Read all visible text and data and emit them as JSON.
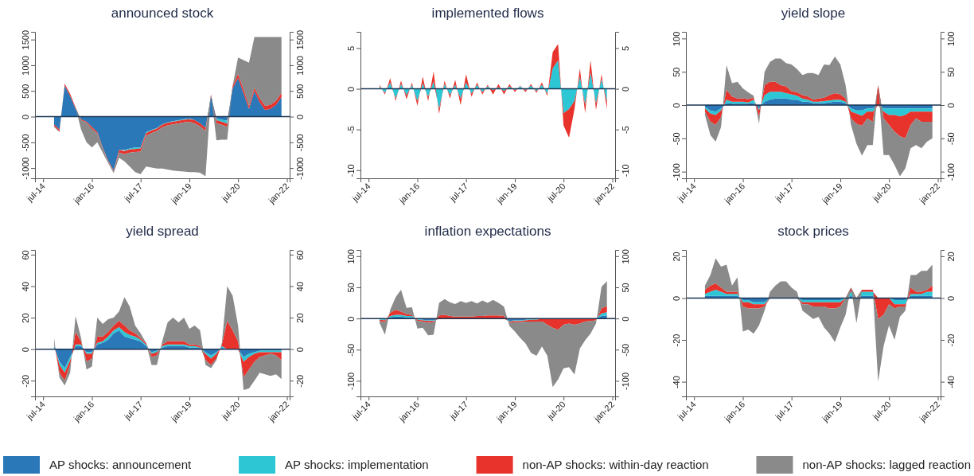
{
  "chart_data": [
    {
      "type": "area",
      "title": "announced stock",
      "stacked": true,
      "x": [
        "2014-11",
        "2015-01",
        "2015-03",
        "2015-05",
        "2015-07",
        "2015-09",
        "2015-11",
        "2016-01",
        "2016-03",
        "2016-05",
        "2016-07",
        "2016-09",
        "2016-11",
        "2017-01",
        "2017-03",
        "2017-05",
        "2017-07",
        "2017-09",
        "2017-11",
        "2018-01",
        "2018-03",
        "2018-05",
        "2018-07",
        "2018-09",
        "2018-11",
        "2019-01",
        "2019-03",
        "2019-05",
        "2019-07",
        "2019-09",
        "2019-11",
        "2020-01",
        "2020-03",
        "2020-05",
        "2020-07",
        "2020-09",
        "2020-11",
        "2021-01",
        "2021-03",
        "2021-05",
        "2021-07",
        "2021-09",
        "2021-11"
      ],
      "xlim": [
        "2014-04",
        "2022-02"
      ],
      "xticks": [
        {
          "value": "2014-07",
          "label": "jul-14"
        },
        {
          "value": "2016-01",
          "label": "jan-16"
        },
        {
          "value": "2017-07",
          "label": "jul-17"
        },
        {
          "value": "2019-01",
          "label": "jan-19"
        },
        {
          "value": "2020-07",
          "label": "jul-20"
        },
        {
          "value": "2022-01",
          "label": "jan-22"
        }
      ],
      "ylim": [
        -1200,
        1650
      ],
      "yticks": [
        -1000,
        -500,
        0,
        500,
        1000,
        1500
      ],
      "y2lim": [
        -1200,
        1650
      ],
      "y2ticks": [
        -1000,
        -500,
        0,
        500,
        1000,
        1500
      ],
      "ref_lines": [
        {
          "axis": "y",
          "value": 0,
          "color": "#1b3553"
        }
      ],
      "series": [
        {
          "color": "#2a78b8",
          "values": [
            -150,
            -250,
            600,
            400,
            150,
            -50,
            -100,
            -200,
            -300,
            -600,
            -850,
            -1050,
            -650,
            -650,
            -620,
            -600,
            -600,
            -300,
            -260,
            -220,
            -150,
            -110,
            -90,
            -70,
            -50,
            -40,
            -70,
            -130,
            -220,
            400,
            -40,
            -60,
            -80,
            550,
            750,
            450,
            150,
            500,
            280,
            130,
            150,
            230,
            380
          ]
        },
        {
          "color": "#2cc6d4",
          "values": [
            null,
            null,
            null,
            null,
            null,
            null,
            null,
            null,
            null,
            null,
            null,
            null,
            null,
            -20,
            -20,
            -30,
            -20,
            -20,
            -10,
            -10,
            -10,
            -10,
            -10,
            -10,
            -10,
            -10,
            null,
            null,
            null,
            null,
            -30,
            -40,
            -60,
            null,
            null,
            null,
            null,
            null,
            null,
            null,
            null,
            null,
            null
          ]
        },
        {
          "color": "#e8322c",
          "values": [
            -30,
            -40,
            40,
            40,
            30,
            -20,
            -20,
            -40,
            -30,
            -20,
            -20,
            -20,
            -50,
            -60,
            -60,
            -60,
            -60,
            -50,
            -50,
            -50,
            -50,
            -50,
            -50,
            -50,
            -50,
            -50,
            -60,
            -60,
            -60,
            30,
            -60,
            -60,
            -60,
            50,
            80,
            80,
            60,
            60,
            80,
            80,
            80,
            80,
            80
          ]
        },
        {
          "color": "#8a8a8a",
          "values": [
            -20,
            -10,
            0,
            0,
            0,
            -180,
            -380,
            -360,
            -170,
            -80,
            -30,
            -30,
            -100,
            -140,
            -270,
            -390,
            -440,
            -600,
            -670,
            -730,
            -800,
            -860,
            -900,
            -930,
            -960,
            -980,
            -950,
            -900,
            -880,
            0,
            -330,
            -290,
            -250,
            0,
            320,
            570,
            840,
            990,
            1190,
            1340,
            1320,
            1240,
            1090
          ]
        }
      ]
    },
    {
      "type": "area",
      "title": "implemented flows",
      "stacked": true,
      "x": [
        "2014-11",
        "2015-01",
        "2015-03",
        "2015-05",
        "2015-07",
        "2015-09",
        "2015-11",
        "2016-01",
        "2016-03",
        "2016-05",
        "2016-07",
        "2016-09",
        "2016-11",
        "2017-01",
        "2017-03",
        "2017-05",
        "2017-07",
        "2017-09",
        "2017-11",
        "2018-01",
        "2018-03",
        "2018-05",
        "2018-07",
        "2018-09",
        "2018-11",
        "2019-01",
        "2019-03",
        "2019-05",
        "2019-07",
        "2019-09",
        "2019-11",
        "2020-01",
        "2020-03",
        "2020-05",
        "2020-07",
        "2020-09",
        "2020-11",
        "2021-01",
        "2021-03",
        "2021-05",
        "2021-07",
        "2021-09",
        "2021-11"
      ],
      "xlim": [
        "2014-04",
        "2022-02"
      ],
      "xticks": [
        {
          "value": "2014-07",
          "label": "jul-14"
        },
        {
          "value": "2016-01",
          "label": "jan-16"
        },
        {
          "value": "2017-07",
          "label": "jul-17"
        },
        {
          "value": "2019-01",
          "label": "jan-19"
        },
        {
          "value": "2020-07",
          "label": "jul-20"
        },
        {
          "value": "2022-01",
          "label": "jan-22"
        }
      ],
      "ylim": [
        -11,
        7
      ],
      "yticks": [
        -10,
        -5,
        0,
        5
      ],
      "y2lim": [
        -11,
        7
      ],
      "y2ticks": [
        -10,
        -5,
        0,
        5
      ],
      "ref_lines": [
        {
          "axis": "y",
          "value": 0,
          "color": "#1b3553"
        }
      ],
      "series": [
        {
          "color": "#2cc6d4",
          "values": [
            0.3,
            -0.5,
            0.8,
            -1.2,
            0.6,
            -0.8,
            0.5,
            -1.5,
            0.7,
            -1.0,
            0.9,
            -2.5,
            0.6,
            -0.8,
            0.5,
            -1.2,
            0.8,
            -0.6,
            0.5,
            -0.4,
            0.3,
            -0.2,
            0.2,
            -0.3,
            0.3,
            -0.2,
            0.3,
            -0.2,
            0.4,
            -0.3,
            0.5,
            -0.6,
            2.5,
            3.5,
            -3.0,
            -2.5,
            -1.5,
            1.5,
            -2.0,
            2.0,
            -1.8,
            1.2,
            -1.5
          ]
        },
        {
          "color": "#e8322c",
          "values": [
            0.2,
            -0.2,
            0.5,
            -0.3,
            0.4,
            -0.5,
            0.3,
            -0.6,
            0.8,
            -0.5,
            1.2,
            -0.6,
            0.4,
            -0.4,
            0.6,
            -0.8,
            1.0,
            -0.4,
            0.3,
            -0.3,
            0.2,
            -0.5,
            0.4,
            -0.4,
            0.3,
            -0.2,
            0.1,
            -0.2,
            0.2,
            -0.2,
            0.3,
            -0.3,
            2.0,
            2.0,
            -1.5,
            -3.5,
            -1.0,
            1.0,
            -1.0,
            1.5,
            -0.8,
            0.6,
            -1.0
          ]
        }
      ]
    },
    {
      "type": "area",
      "title": "yield slope",
      "stacked": true,
      "x": [
        "2014-11",
        "2015-01",
        "2015-03",
        "2015-05",
        "2015-07",
        "2015-09",
        "2015-11",
        "2016-01",
        "2016-03",
        "2016-05",
        "2016-07",
        "2016-09",
        "2016-11",
        "2017-01",
        "2017-03",
        "2017-05",
        "2017-07",
        "2017-09",
        "2017-11",
        "2018-01",
        "2018-03",
        "2018-05",
        "2018-07",
        "2018-09",
        "2018-11",
        "2019-01",
        "2019-03",
        "2019-05",
        "2019-07",
        "2019-09",
        "2019-11",
        "2020-01",
        "2020-03",
        "2020-05",
        "2020-07",
        "2020-09",
        "2020-11",
        "2021-01",
        "2021-03",
        "2021-05",
        "2021-07",
        "2021-09",
        "2021-11"
      ],
      "xlim": [
        "2014-04",
        "2022-02"
      ],
      "xticks": [
        {
          "value": "2014-07",
          "label": "jul-14"
        },
        {
          "value": "2016-01",
          "label": "jan-16"
        },
        {
          "value": "2017-07",
          "label": "jul-17"
        },
        {
          "value": "2019-01",
          "label": "jan-19"
        },
        {
          "value": "2020-07",
          "label": "jul-20"
        },
        {
          "value": "2022-01",
          "label": "jan-22"
        }
      ],
      "ylim": [
        -110,
        110
      ],
      "yticks": [
        -100,
        -50,
        0,
        50,
        100
      ],
      "y2lim": [
        -110,
        110
      ],
      "y2ticks": [
        -100,
        -50,
        0,
        50,
        100
      ],
      "ref_lines": [
        {
          "axis": "y",
          "value": 0,
          "color": "#1b3553"
        }
      ],
      "series": [
        {
          "color": "#2a78b8",
          "values": [
            -3,
            -8,
            -10,
            -5,
            3,
            2,
            2,
            2,
            2,
            3,
            -5,
            5,
            8,
            10,
            10,
            10,
            8,
            8,
            5,
            5,
            3,
            3,
            3,
            4,
            5,
            5,
            3,
            -5,
            -8,
            -8,
            -5,
            -5,
            0,
            -5,
            -5,
            -5,
            -5,
            -5,
            -5,
            -5,
            -5,
            -5,
            -5
          ]
        },
        {
          "color": "#2cc6d4",
          "values": [
            -2,
            -5,
            -5,
            -3,
            5,
            3,
            3,
            3,
            2,
            5,
            -3,
            10,
            12,
            10,
            10,
            8,
            8,
            6,
            5,
            3,
            2,
            2,
            3,
            3,
            3,
            3,
            2,
            -5,
            -5,
            -8,
            -5,
            -5,
            0,
            -5,
            -10,
            -10,
            -12,
            -10,
            -5,
            -5,
            -5,
            -5,
            -5
          ]
        },
        {
          "color": "#e8322c",
          "values": [
            -5,
            -12,
            -15,
            -10,
            15,
            8,
            5,
            5,
            5,
            3,
            -10,
            15,
            15,
            15,
            10,
            10,
            5,
            5,
            5,
            5,
            3,
            5,
            5,
            8,
            10,
            8,
            5,
            -10,
            -15,
            -15,
            -10,
            -15,
            30,
            -10,
            -15,
            -25,
            -30,
            -35,
            -20,
            -10,
            -15,
            -15,
            -15
          ]
        },
        {
          "color": "#8a8a8a",
          "values": [
            -5,
            -20,
            -25,
            -15,
            37,
            20,
            25,
            15,
            10,
            3,
            -10,
            20,
            30,
            35,
            40,
            35,
            40,
            35,
            30,
            35,
            40,
            35,
            50,
            45,
            55,
            45,
            20,
            -10,
            -30,
            -45,
            -40,
            -35,
            0,
            -55,
            -45,
            -50,
            -60,
            -45,
            -35,
            -40,
            -40,
            -30,
            -25
          ]
        }
      ]
    },
    {
      "type": "area",
      "title": "yield spread",
      "stacked": true,
      "legend": "bottom",
      "x": [
        "2014-11",
        "2015-01",
        "2015-03",
        "2015-05",
        "2015-07",
        "2015-09",
        "2015-11",
        "2016-01",
        "2016-03",
        "2016-05",
        "2016-07",
        "2016-09",
        "2016-11",
        "2017-01",
        "2017-03",
        "2017-05",
        "2017-07",
        "2017-09",
        "2017-11",
        "2018-01",
        "2018-03",
        "2018-05",
        "2018-07",
        "2018-09",
        "2018-11",
        "2019-01",
        "2019-03",
        "2019-05",
        "2019-07",
        "2019-09",
        "2019-11",
        "2020-01",
        "2020-03",
        "2020-05",
        "2020-07",
        "2020-09",
        "2020-11",
        "2021-01",
        "2021-03",
        "2021-05",
        "2021-07",
        "2021-09",
        "2021-11"
      ],
      "xlim": [
        "2014-04",
        "2022-02"
      ],
      "xticks": [
        {
          "value": "2014-07",
          "label": "jul-14"
        },
        {
          "value": "2016-01",
          "label": "jan-16"
        },
        {
          "value": "2017-07",
          "label": "jul-17"
        },
        {
          "value": "2019-01",
          "label": "jan-19"
        },
        {
          "value": "2020-07",
          "label": "jul-20"
        },
        {
          "value": "2022-01",
          "label": "jan-22"
        }
      ],
      "ylim": [
        -30,
        63
      ],
      "yticks": [
        -20,
        0,
        20,
        40,
        60
      ],
      "y2lim": [
        -30,
        63
      ],
      "y2ticks": [
        -20,
        0,
        20,
        40,
        60
      ],
      "ref_lines": [
        {
          "axis": "y",
          "value": 0,
          "color": "#1b3553"
        }
      ],
      "series": [
        {
          "name": "AP shocks: announcement",
          "color": "#2a78b8",
          "values": [
            2,
            -8,
            -12,
            -5,
            2,
            2,
            -2,
            -2,
            3,
            4,
            6,
            10,
            12,
            8,
            7,
            6,
            5,
            2,
            -2,
            -1,
            1,
            2,
            2,
            2,
            2,
            1,
            1,
            1,
            -2,
            -4,
            -2,
            1,
            0,
            0,
            0,
            -5,
            -3,
            -2,
            -1,
            -1,
            -1,
            -1,
            -1
          ]
        },
        {
          "name": "AP shocks: implementation",
          "color": "#2cc6d4",
          "values": [
            1,
            -2,
            -3,
            -2,
            1,
            1,
            -1,
            -1,
            1,
            1,
            2,
            2,
            2,
            3,
            2,
            2,
            1,
            1,
            -1,
            -1,
            1,
            1,
            1,
            1,
            1,
            1,
            1,
            0,
            -1,
            -2,
            -1,
            1,
            0,
            0,
            0,
            -3,
            -2,
            -1,
            -1,
            -1,
            -1,
            -1,
            -1
          ]
        },
        {
          "name": "non-AP shocks: within-day reaction",
          "color": "#e8322c",
          "values": [
            1,
            -5,
            -5,
            -3,
            8,
            2,
            -5,
            -3,
            4,
            3,
            3,
            3,
            4,
            4,
            3,
            2,
            1,
            1,
            -2,
            -2,
            1,
            2,
            2,
            2,
            2,
            1,
            1,
            1,
            -4,
            -4,
            -3,
            1,
            18,
            12,
            5,
            -10,
            -8,
            -5,
            -3,
            -2,
            -1,
            -2,
            -5
          ]
        },
        {
          "name": "non-AP shocks: lagged reaction",
          "color": "#8a8a8a",
          "values": [
            3,
            -3,
            -3,
            -5,
            10,
            2,
            -5,
            -5,
            12,
            8,
            8,
            5,
            6,
            18,
            15,
            5,
            3,
            0,
            -5,
            -6,
            2,
            12,
            15,
            12,
            15,
            10,
            12,
            10,
            -3,
            -2,
            -1,
            1,
            22,
            22,
            10,
            -8,
            -12,
            -12,
            -10,
            -12,
            -14,
            -12,
            -12
          ]
        }
      ]
    },
    {
      "type": "area",
      "title": "inflation expectations",
      "stacked": true,
      "x": [
        "2014-11",
        "2015-01",
        "2015-03",
        "2015-05",
        "2015-07",
        "2015-09",
        "2015-11",
        "2016-01",
        "2016-03",
        "2016-05",
        "2016-07",
        "2016-09",
        "2016-11",
        "2017-01",
        "2017-03",
        "2017-05",
        "2017-07",
        "2017-09",
        "2017-11",
        "2018-01",
        "2018-03",
        "2018-05",
        "2018-07",
        "2018-09",
        "2018-11",
        "2019-01",
        "2019-03",
        "2019-05",
        "2019-07",
        "2019-09",
        "2019-11",
        "2020-01",
        "2020-03",
        "2020-05",
        "2020-07",
        "2020-09",
        "2020-11",
        "2021-01",
        "2021-03",
        "2021-05",
        "2021-07",
        "2021-09",
        "2021-11"
      ],
      "xlim": [
        "2014-04",
        "2022-02"
      ],
      "xticks": [
        {
          "value": "2014-07",
          "label": "jul-14"
        },
        {
          "value": "2016-01",
          "label": "jan-16"
        },
        {
          "value": "2017-07",
          "label": "jul-17"
        },
        {
          "value": "2019-01",
          "label": "jan-19"
        },
        {
          "value": "2020-07",
          "label": "jul-20"
        },
        {
          "value": "2022-01",
          "label": "jan-22"
        }
      ],
      "ylim": [
        -125,
        110
      ],
      "yticks": [
        -100,
        -50,
        0,
        50,
        100
      ],
      "y2lim": [
        -125,
        110
      ],
      "y2ticks": [
        -100,
        -50,
        0,
        50,
        100
      ],
      "ref_lines": [
        {
          "axis": "y",
          "value": 0,
          "color": "#1b3553"
        }
      ],
      "series": [
        {
          "color": "#2a78b8",
          "values": [
            -1,
            -2,
            2,
            3,
            3,
            2,
            2,
            -1,
            -2,
            -3,
            -3,
            0,
            0,
            0,
            0,
            0,
            0,
            0,
            0,
            0,
            0,
            0,
            0,
            0,
            -4,
            -3,
            -3,
            -2,
            -1,
            -1,
            0,
            0,
            0,
            0,
            0,
            0,
            0,
            0,
            0,
            0,
            0,
            4,
            5
          ]
        },
        {
          "color": "#2cc6d4",
          "values": [
            -1,
            -1,
            2,
            3,
            3,
            2,
            2,
            -1,
            -1,
            -1,
            -1,
            0,
            0,
            0,
            0,
            0,
            0,
            0,
            0,
            0,
            0,
            0,
            0,
            0,
            -1,
            -1,
            -1,
            -1,
            -1,
            -1,
            0,
            0,
            0,
            0,
            0,
            0,
            0,
            0,
            0,
            0,
            0,
            4,
            5
          ]
        },
        {
          "color": "#e8322c",
          "values": [
            -2,
            -3,
            5,
            8,
            5,
            3,
            2,
            -2,
            -2,
            -3,
            -2,
            5,
            6,
            4,
            3,
            3,
            3,
            3,
            4,
            4,
            5,
            5,
            5,
            4,
            -2,
            -2,
            -2,
            -2,
            -3,
            -3,
            -5,
            -10,
            -15,
            -18,
            -10,
            -8,
            -10,
            -8,
            -5,
            -4,
            -3,
            8,
            10
          ]
        },
        {
          "color": "#8a8a8a",
          "values": [
            -3,
            -20,
            5,
            20,
            35,
            10,
            12,
            -12,
            -10,
            -20,
            -20,
            20,
            25,
            22,
            20,
            25,
            22,
            25,
            20,
            25,
            20,
            25,
            20,
            15,
            -5,
            -15,
            -25,
            -35,
            -50,
            -55,
            -40,
            -50,
            -95,
            -80,
            -70,
            -70,
            -80,
            -40,
            -30,
            -20,
            -5,
            35,
            40
          ]
        }
      ]
    },
    {
      "type": "area",
      "title": "stock prices",
      "stacked": true,
      "x": [
        "2014-11",
        "2015-01",
        "2015-03",
        "2015-05",
        "2015-07",
        "2015-09",
        "2015-11",
        "2016-01",
        "2016-03",
        "2016-05",
        "2016-07",
        "2016-09",
        "2016-11",
        "2017-01",
        "2017-03",
        "2017-05",
        "2017-07",
        "2017-09",
        "2017-11",
        "2018-01",
        "2018-03",
        "2018-05",
        "2018-07",
        "2018-09",
        "2018-11",
        "2019-01",
        "2019-03",
        "2019-05",
        "2019-07",
        "2019-09",
        "2019-11",
        "2020-01",
        "2020-03",
        "2020-05",
        "2020-07",
        "2020-09",
        "2020-11",
        "2021-01",
        "2021-03",
        "2021-05",
        "2021-07",
        "2021-09",
        "2021-11"
      ],
      "xlim": [
        "2014-04",
        "2022-02"
      ],
      "xticks": [
        {
          "value": "2014-07",
          "label": "jul-14"
        },
        {
          "value": "2016-01",
          "label": "jan-16"
        },
        {
          "value": "2017-07",
          "label": "jul-17"
        },
        {
          "value": "2019-01",
          "label": "jan-19"
        },
        {
          "value": "2020-07",
          "label": "jul-20"
        },
        {
          "value": "2022-01",
          "label": "jan-22"
        }
      ],
      "ylim": [
        -47,
        23
      ],
      "yticks": [
        -40,
        -20,
        0,
        20
      ],
      "y2lim": [
        -47,
        23
      ],
      "y2ticks": [
        -40,
        -20,
        0,
        20
      ],
      "ref_lines": [
        {
          "axis": "y",
          "value": 0,
          "color": "#1b3553"
        }
      ],
      "series": [
        {
          "color": "#2a78b8",
          "values": [
            1,
            1,
            1,
            1,
            1,
            1,
            1,
            -1,
            -1,
            -2,
            -2,
            -2,
            0,
            0,
            0,
            0,
            0,
            0,
            -1,
            -1,
            -1,
            -1,
            -1,
            -1,
            -1,
            -1,
            0,
            1,
            0,
            1,
            1,
            1,
            0,
            0,
            0,
            -1,
            -1,
            -1,
            1,
            1,
            1,
            1,
            1
          ]
        },
        {
          "color": "#2cc6d4",
          "values": [
            1,
            2,
            3,
            2,
            1,
            1,
            1,
            -1,
            -1,
            -1,
            -1,
            -1,
            0,
            0,
            0,
            0,
            0,
            0,
            -1,
            -1,
            -1,
            -1,
            -1,
            -1,
            -1,
            -1,
            0,
            2,
            0,
            2,
            2,
            2,
            0,
            0,
            0,
            -2,
            -2,
            -2,
            1,
            1,
            1,
            2,
            2
          ]
        },
        {
          "color": "#e8322c",
          "values": [
            2,
            3,
            3,
            2,
            1,
            1,
            1,
            -2,
            -3,
            -2,
            -2,
            -1,
            0,
            0,
            0,
            0,
            0,
            0,
            -1,
            -1,
            -2,
            -2,
            -2,
            -3,
            -3,
            -2,
            0,
            2,
            0,
            1,
            1,
            1,
            -10,
            -8,
            -3,
            -2,
            -1,
            -1,
            3,
            1,
            1,
            1,
            3
          ]
        },
        {
          "color": "#8a8a8a",
          "values": [
            2,
            5,
            12,
            10,
            13,
            3,
            7,
            -12,
            -10,
            -12,
            -8,
            -2,
            3,
            6,
            8,
            8,
            5,
            3,
            -3,
            -5,
            -6,
            -5,
            -10,
            -12,
            -16,
            -10,
            -8,
            0,
            -12,
            0,
            0,
            0,
            -30,
            -15,
            -10,
            -15,
            -5,
            -2,
            6,
            8,
            10,
            9,
            10
          ]
        }
      ]
    }
  ]
}
